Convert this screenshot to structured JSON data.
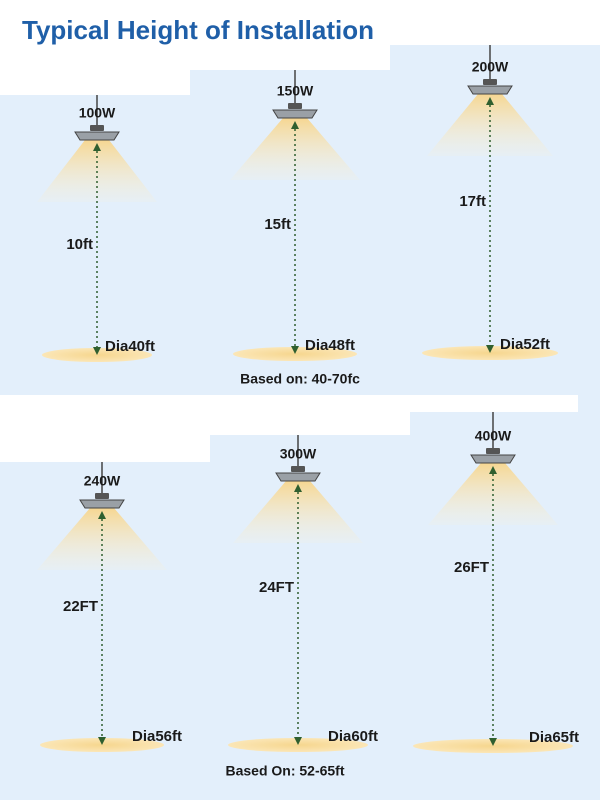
{
  "title": "Typical Height of Installation",
  "panels": [
    {
      "lamps": [
        {
          "watt": "100W",
          "height": "10ft",
          "diameter": "Dia40ft"
        },
        {
          "watt": "150W",
          "height": "15ft",
          "diameter": "Dia48ft"
        },
        {
          "watt": "200W",
          "height": "17ft",
          "diameter": "Dia52ft"
        }
      ],
      "note": "Based on: 40-70fc"
    },
    {
      "lamps": [
        {
          "watt": "240W",
          "height": "22FT",
          "diameter": "Dia56ft"
        },
        {
          "watt": "300W",
          "height": "24FT",
          "diameter": "Dia60ft"
        },
        {
          "watt": "400W",
          "height": "26FT",
          "diameter": "Dia65ft"
        }
      ],
      "note": "Based On: 52-65ft"
    }
  ]
}
